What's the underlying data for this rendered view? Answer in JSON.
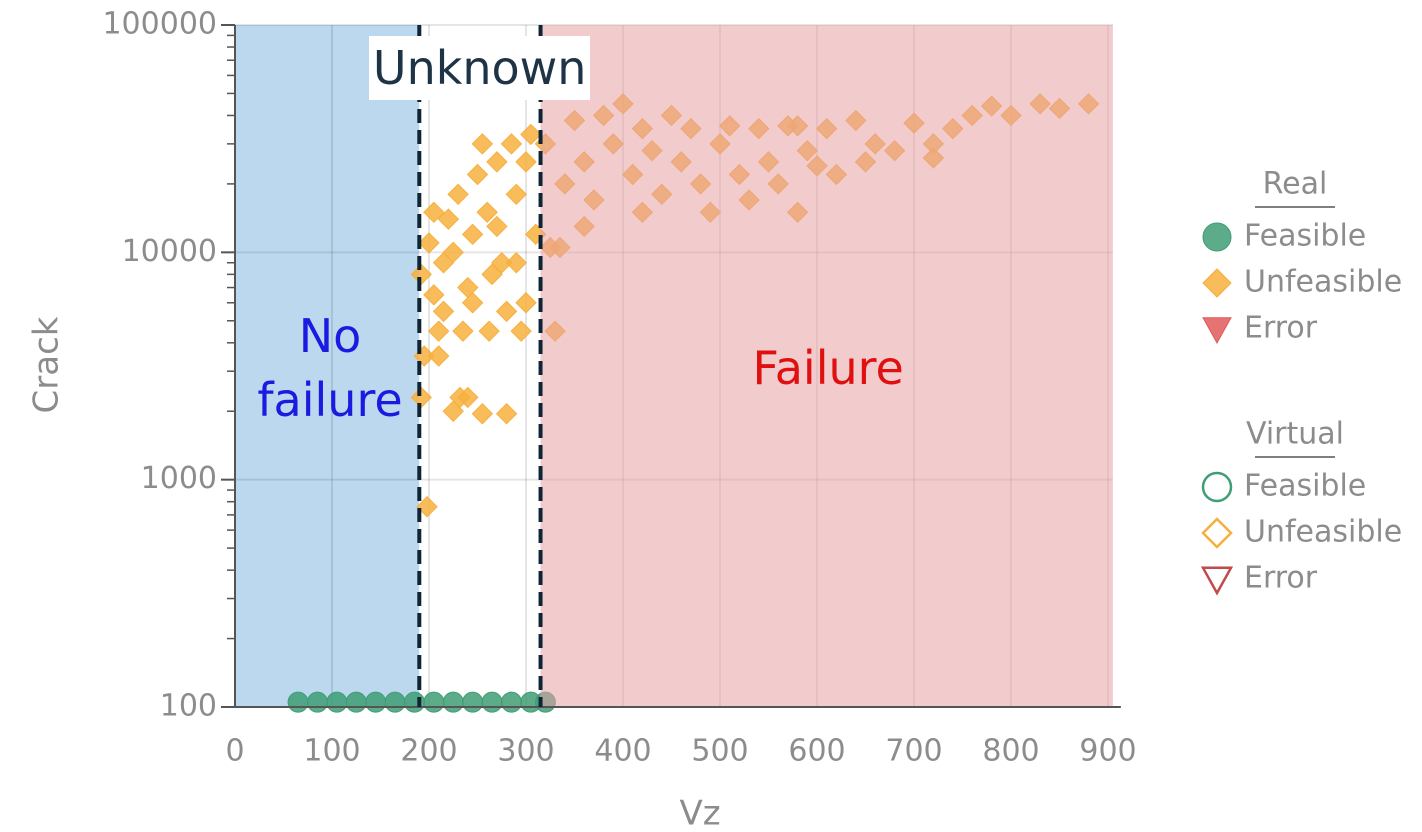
{
  "chart_data": {
    "type": "scatter",
    "x_label": "Vz",
    "y_label": "Crack",
    "xlim": [
      0,
      905
    ],
    "xticks": [
      0,
      100,
      200,
      300,
      400,
      500,
      600,
      700,
      800,
      900
    ],
    "ylim": [
      100,
      100000
    ],
    "yticks": [
      100,
      1000,
      10000,
      100000
    ],
    "y_log": true,
    "grid": true,
    "regions": [
      {
        "label": "No failure",
        "x0": 0,
        "x1": 190,
        "color": "#bcd8ee"
      },
      {
        "label": "Unknown",
        "x0": 190,
        "x1": 315,
        "color": "#ffffff"
      },
      {
        "label": "Failure",
        "x0": 315,
        "x1": 905,
        "color": "#e8a0a4"
      }
    ],
    "dividers": [
      190,
      315
    ],
    "legend_groups": [
      "Real",
      "Virtual"
    ],
    "series": [
      {
        "name": "Feasible",
        "group": "Real",
        "marker": "circle",
        "filled": true,
        "color": "#3f9e75",
        "x": [
          65,
          85,
          105,
          125,
          145,
          165,
          185,
          205,
          225,
          245,
          265,
          285,
          305,
          320
        ],
        "y": [
          105,
          105,
          105,
          105,
          105,
          105,
          105,
          105,
          105,
          105,
          105,
          105,
          105,
          105
        ]
      },
      {
        "name": "Unfeasible",
        "group": "Real",
        "marker": "diamond",
        "filled": true,
        "color": "#f7b03e",
        "x": [
          192,
          195,
          192,
          198,
          200,
          205,
          210,
          215,
          220,
          225,
          230,
          232,
          235,
          240,
          245,
          250,
          255,
          260,
          262,
          270,
          275,
          280,
          285,
          290,
          295,
          300,
          305,
          310,
          210,
          240,
          265,
          280,
          300,
          205,
          225,
          255,
          290,
          215,
          245,
          270,
          320,
          325,
          330,
          335,
          340,
          350,
          360,
          370,
          380,
          390,
          400,
          410,
          420,
          430,
          440,
          450,
          460,
          470,
          480,
          490,
          500,
          510,
          520,
          530,
          540,
          550,
          560,
          570,
          580,
          590,
          600,
          610,
          620,
          640,
          650,
          660,
          680,
          700,
          720,
          740,
          760,
          780,
          800,
          830,
          850,
          880,
          720,
          580,
          420,
          360
        ],
        "y": [
          8000,
          3500,
          2300,
          760,
          11000,
          6500,
          4500,
          9000,
          14000,
          2000,
          18000,
          2300,
          4500,
          7000,
          12000,
          22000,
          1950,
          15000,
          4500,
          25000,
          9000,
          1950,
          30000,
          18000,
          4500,
          6000,
          33000,
          12000,
          3500,
          2300,
          8000,
          5500,
          25000,
          15000,
          10000,
          30000,
          9000,
          5500,
          6000,
          13000,
          30000,
          10500,
          4500,
          10500,
          20000,
          38000,
          25000,
          17000,
          40000,
          30000,
          45000,
          22000,
          35000,
          28000,
          18000,
          40000,
          25000,
          35000,
          20000,
          15000,
          30000,
          36000,
          22000,
          17000,
          35000,
          25000,
          20000,
          36000,
          15000,
          28000,
          24000,
          35000,
          22000,
          38000,
          25000,
          30000,
          28000,
          37000,
          30000,
          35000,
          40000,
          44000,
          40000,
          45000,
          43000,
          45000,
          26000,
          36000,
          15000,
          13000
        ]
      },
      {
        "name": "Error",
        "group": "Real",
        "marker": "triangle",
        "filled": true,
        "color": "#e05a5a",
        "x": [],
        "y": []
      },
      {
        "name": "Feasible",
        "group": "Virtual",
        "marker": "circle",
        "filled": false,
        "color": "#3f9e75",
        "x": [],
        "y": []
      },
      {
        "name": "Unfeasible",
        "group": "Virtual",
        "marker": "diamond",
        "filled": false,
        "color": "#f7b03e",
        "x": [],
        "y": []
      },
      {
        "name": "Error",
        "group": "Virtual",
        "marker": "triangle",
        "filled": false,
        "color": "#c24a4a",
        "x": [],
        "y": []
      }
    ]
  }
}
